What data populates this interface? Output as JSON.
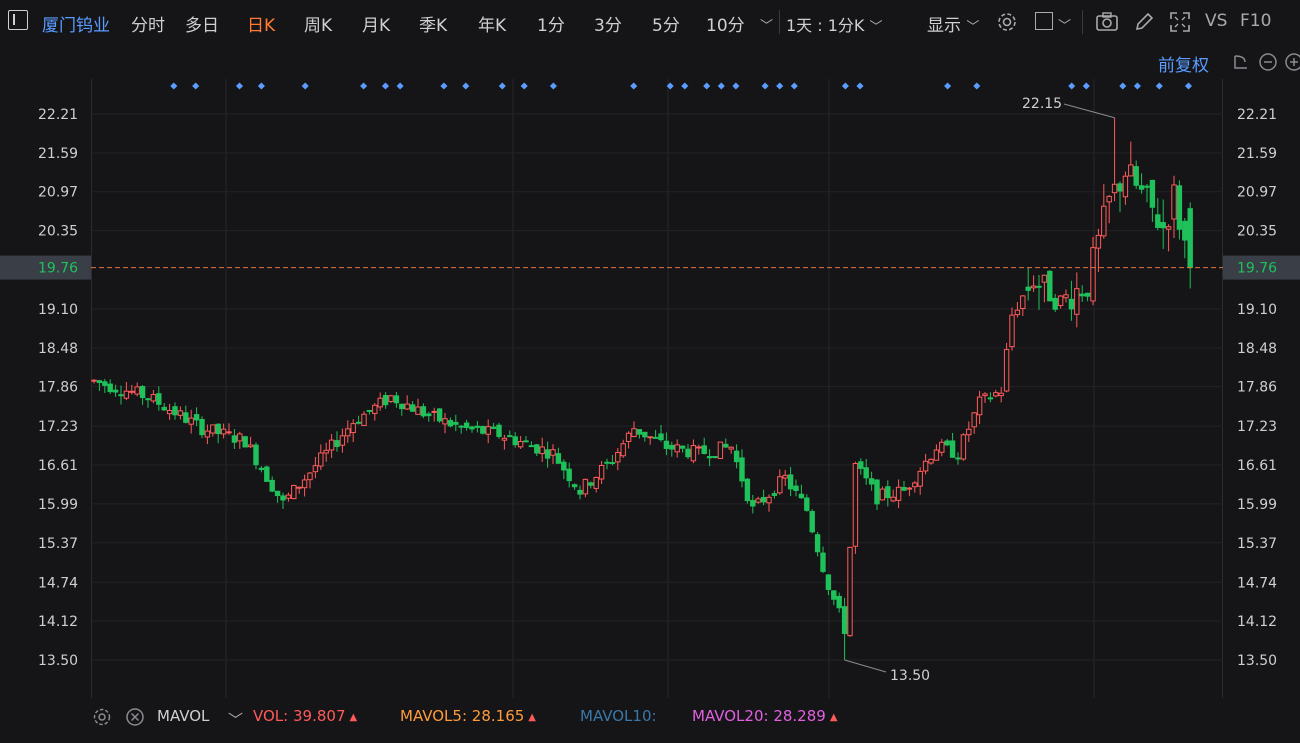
{
  "toolbar": {
    "stock_name": "厦门钨业",
    "periods": [
      "分时",
      "多日",
      "日K",
      "周K",
      "月K",
      "季K",
      "年K",
      "1分",
      "3分",
      "5分",
      "10分"
    ],
    "active_period": "日K",
    "interval_select": "1天 : 1分K",
    "display_label": "显示",
    "vs_label": "VS",
    "f10_label": "F10"
  },
  "adjust_label": "前复权",
  "current_price": "19.76",
  "annotations": {
    "high": "22.15",
    "low": "13.50"
  },
  "indicator": {
    "name": "MAVOL",
    "vol_label": "VOL:",
    "vol_value": "39.807",
    "mavol5_label": "MAVOL5:",
    "mavol5_value": "28.165",
    "mavol10_label": "MAVOL10:",
    "mavol20_label": "MAVOL20:",
    "mavol20_value": "28.289"
  },
  "colors": {
    "up": "#ff5a5a",
    "down": "#1fc15a",
    "active_tab": "#ff7a32",
    "accent": "#5a9cff",
    "mavol5": "#ff9c3a",
    "mavol10": "#3a78a8",
    "mavol20": "#e060e0",
    "current_line": "#e5753a"
  },
  "chart_data": {
    "type": "candlestick",
    "y_ticks": [
      "22.21",
      "21.59",
      "20.97",
      "20.35",
      "19.76",
      "19.10",
      "18.48",
      "17.86",
      "17.23",
      "16.61",
      "15.99",
      "15.37",
      "14.74",
      "14.12",
      "13.50"
    ],
    "ylim": [
      13.5,
      22.21
    ],
    "high": 22.15,
    "low": 13.5,
    "current": 19.76,
    "key_points": [
      [
        0,
        17.95
      ],
      [
        10,
        17.7
      ],
      [
        20,
        17.2
      ],
      [
        28,
        17.0
      ],
      [
        35,
        16.0
      ],
      [
        40,
        16.5
      ],
      [
        48,
        17.3
      ],
      [
        55,
        17.7
      ],
      [
        62,
        17.4
      ],
      [
        68,
        17.2
      ],
      [
        75,
        17.1
      ],
      [
        85,
        16.8
      ],
      [
        90,
        16.2
      ],
      [
        96,
        16.7
      ],
      [
        100,
        17.2
      ],
      [
        106,
        16.9
      ],
      [
        112,
        16.8
      ],
      [
        118,
        16.9
      ],
      [
        122,
        15.9
      ],
      [
        128,
        16.4
      ],
      [
        132,
        15.9
      ],
      [
        136,
        14.7
      ],
      [
        139,
        14.0
      ],
      [
        141,
        16.6
      ],
      [
        145,
        16.1
      ],
      [
        150,
        16.2
      ],
      [
        156,
        16.9
      ],
      [
        160,
        16.8
      ],
      [
        164,
        17.6
      ],
      [
        168,
        17.8
      ],
      [
        170,
        19.0
      ],
      [
        174,
        19.6
      ],
      [
        178,
        19.2
      ],
      [
        184,
        19.5
      ],
      [
        188,
        20.8
      ],
      [
        191,
        21.3
      ],
      [
        195,
        20.8
      ],
      [
        198,
        20.4
      ],
      [
        200,
        20.9
      ],
      [
        203,
        19.76
      ]
    ],
    "markers": [
      6,
      9,
      15,
      18,
      24,
      32,
      35,
      37,
      43,
      46,
      51,
      54,
      58,
      69,
      74,
      76,
      79,
      81,
      83,
      87,
      89,
      91,
      98,
      100,
      112,
      116,
      129,
      131,
      136,
      138,
      141,
      145
    ]
  }
}
